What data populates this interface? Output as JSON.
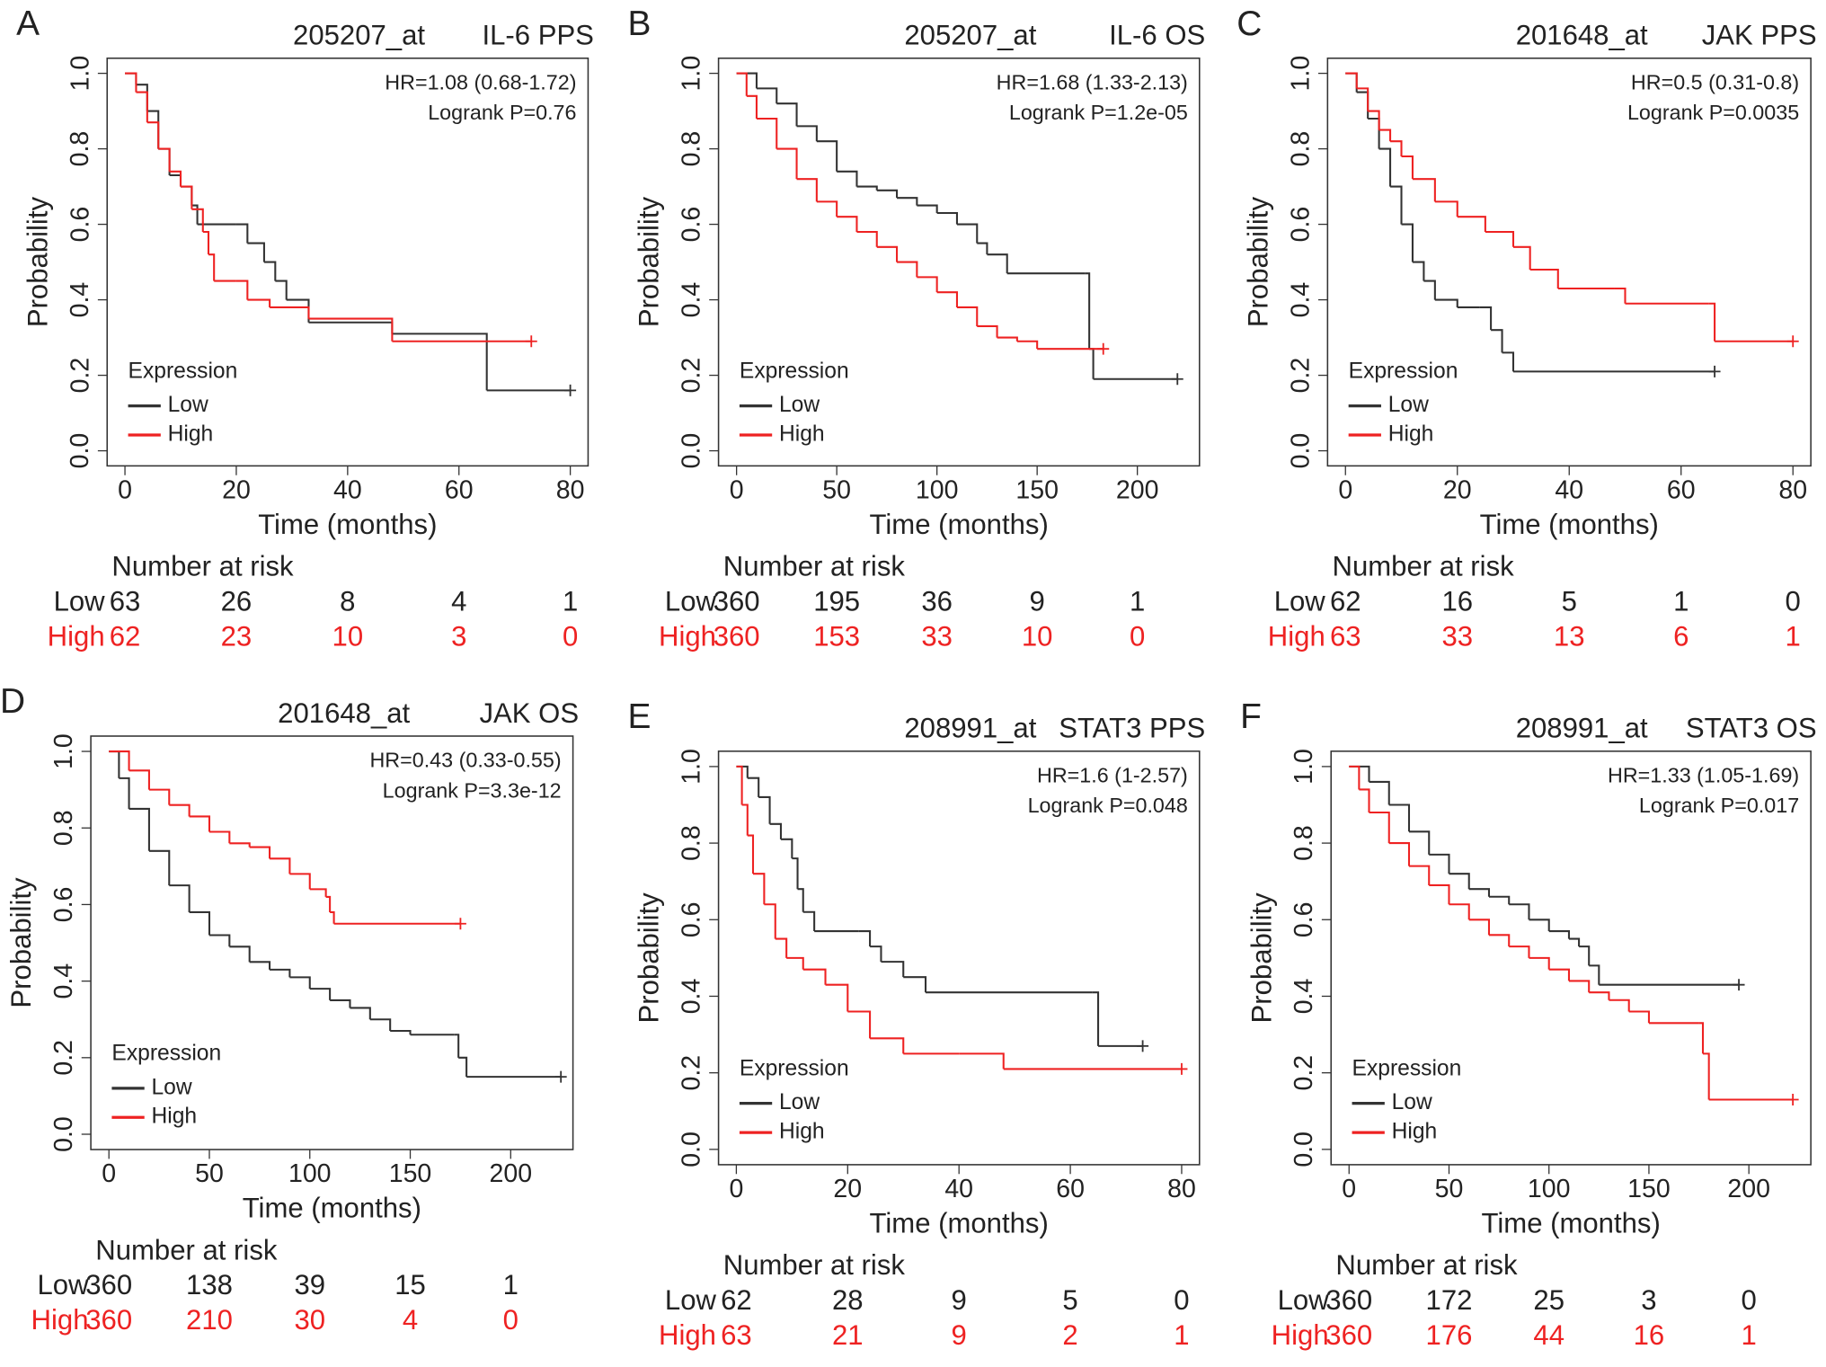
{
  "chart_data": [
    {
      "type": "step",
      "panel_label": "A",
      "title": "205207_at",
      "subtitle": "IL-6 PPS",
      "annotations": [
        "HR=1.08 (0.68-1.72)",
        "Logrank P=0.76"
      ],
      "x_label": "Time (months)",
      "y_label": "Probability",
      "legend_title": "Expression",
      "xlim": [
        -3.2,
        83.2
      ],
      "xticks": [
        0,
        20,
        40,
        60,
        80
      ],
      "ylim": [
        -0.04,
        1.04
      ],
      "yticks": [
        {
          "value": 0,
          "label": "0.0"
        },
        {
          "value": 0.2,
          "label": "0.2"
        },
        {
          "value": 0.4,
          "label": "0.4"
        },
        {
          "value": 0.6,
          "label": "0.6"
        },
        {
          "value": 0.8,
          "label": "0.8"
        },
        {
          "value": 1,
          "label": "1.0"
        }
      ],
      "series": [
        {
          "name": "Low",
          "color": "#333333",
          "x": [
            0,
            2,
            4,
            6,
            8,
            10,
            12,
            13,
            20,
            22,
            25,
            27,
            29,
            33,
            48,
            64,
            65,
            80
          ],
          "values": [
            1,
            0.97,
            0.9,
            0.8,
            0.73,
            0.7,
            0.65,
            0.6,
            0.6,
            0.55,
            0.5,
            0.45,
            0.4,
            0.34,
            0.31,
            0.31,
            0.16,
            0.16
          ]
        },
        {
          "name": "High",
          "color": "#ee2222",
          "x": [
            0,
            2,
            4,
            6,
            8,
            10,
            12,
            14,
            15,
            16,
            20,
            22,
            26,
            33,
            48,
            73
          ],
          "values": [
            1,
            0.95,
            0.87,
            0.8,
            0.74,
            0.7,
            0.64,
            0.58,
            0.52,
            0.45,
            0.45,
            0.4,
            0.38,
            0.35,
            0.29,
            0.29
          ]
        }
      ],
      "risk_table": {
        "title": "Number at risk",
        "rows": [
          {
            "name": "Low",
            "color": "#222222",
            "values": [
              63,
              26,
              8,
              4,
              1
            ]
          },
          {
            "name": "High",
            "color": "#ee2222",
            "values": [
              62,
              23,
              10,
              3,
              0
            ]
          }
        ]
      }
    },
    {
      "type": "step",
      "panel_label": "B",
      "title": "205207_at",
      "subtitle": "IL-6 OS",
      "annotations": [
        "HR=1.68 (1.33-2.13)",
        "Logrank P=1.2e-05"
      ],
      "x_label": "Time (months)",
      "y_label": "Probability",
      "legend_title": "Expression",
      "xlim": [
        -9,
        231
      ],
      "xticks": [
        0,
        50,
        100,
        150,
        200
      ],
      "ylim": [
        -0.04,
        1.04
      ],
      "yticks": [
        {
          "value": 0,
          "label": "0.0"
        },
        {
          "value": 0.2,
          "label": "0.2"
        },
        {
          "value": 0.4,
          "label": "0.4"
        },
        {
          "value": 0.6,
          "label": "0.6"
        },
        {
          "value": 0.8,
          "label": "0.8"
        },
        {
          "value": 1,
          "label": "1.0"
        }
      ],
      "series": [
        {
          "name": "Low",
          "color": "#333333",
          "x": [
            0,
            10,
            20,
            30,
            40,
            50,
            60,
            70,
            80,
            90,
            100,
            110,
            120,
            125,
            135,
            174,
            176,
            178,
            220
          ],
          "values": [
            1,
            0.96,
            0.92,
            0.86,
            0.82,
            0.74,
            0.7,
            0.69,
            0.67,
            0.65,
            0.63,
            0.6,
            0.55,
            0.52,
            0.47,
            0.47,
            0.27,
            0.19,
            0.19
          ]
        },
        {
          "name": "High",
          "color": "#ee2222",
          "x": [
            0,
            5,
            10,
            20,
            30,
            40,
            50,
            60,
            70,
            80,
            90,
            100,
            110,
            120,
            130,
            140,
            150,
            183
          ],
          "values": [
            1,
            0.94,
            0.88,
            0.8,
            0.72,
            0.66,
            0.62,
            0.58,
            0.54,
            0.5,
            0.46,
            0.42,
            0.38,
            0.33,
            0.3,
            0.29,
            0.27,
            0.27
          ]
        }
      ],
      "risk_table": {
        "title": "Number at risk",
        "rows": [
          {
            "name": "Low",
            "color": "#222222",
            "values": [
              360,
              195,
              36,
              9,
              1
            ]
          },
          {
            "name": "High",
            "color": "#ee2222",
            "values": [
              360,
              153,
              33,
              10,
              0
            ]
          }
        ]
      }
    },
    {
      "type": "step",
      "panel_label": "C",
      "title": "201648_at",
      "subtitle": "JAK PPS",
      "annotations": [
        "HR=0.5 (0.31-0.8)",
        "Logrank P=0.0035"
      ],
      "x_label": "Time (months)",
      "y_label": "Probability",
      "legend_title": "Expression",
      "xlim": [
        -3.2,
        83.2
      ],
      "xticks": [
        0,
        20,
        40,
        60,
        80
      ],
      "ylim": [
        -0.04,
        1.04
      ],
      "yticks": [
        {
          "value": 0,
          "label": "0.0"
        },
        {
          "value": 0.2,
          "label": "0.2"
        },
        {
          "value": 0.4,
          "label": "0.4"
        },
        {
          "value": 0.6,
          "label": "0.6"
        },
        {
          "value": 0.8,
          "label": "0.8"
        },
        {
          "value": 1,
          "label": "1.0"
        }
      ],
      "series": [
        {
          "name": "Low",
          "color": "#333333",
          "x": [
            0,
            2,
            4,
            6,
            8,
            10,
            12,
            14,
            16,
            20,
            24,
            26,
            28,
            30,
            66
          ],
          "values": [
            1,
            0.95,
            0.88,
            0.8,
            0.7,
            0.6,
            0.5,
            0.45,
            0.4,
            0.38,
            0.38,
            0.32,
            0.26,
            0.21,
            0.21
          ]
        },
        {
          "name": "High",
          "color": "#ee2222",
          "x": [
            0,
            2,
            4,
            6,
            8,
            10,
            12,
            16,
            20,
            25,
            30,
            33,
            38,
            48,
            50,
            65,
            66,
            80
          ],
          "values": [
            1,
            0.96,
            0.9,
            0.85,
            0.82,
            0.78,
            0.72,
            0.66,
            0.62,
            0.58,
            0.54,
            0.48,
            0.43,
            0.43,
            0.39,
            0.39,
            0.29,
            0.29
          ]
        }
      ],
      "risk_table": {
        "title": "Number at risk",
        "rows": [
          {
            "name": "Low",
            "color": "#222222",
            "values": [
              62,
              16,
              5,
              1,
              0
            ]
          },
          {
            "name": "High",
            "color": "#ee2222",
            "values": [
              63,
              33,
              13,
              6,
              1
            ]
          }
        ]
      }
    },
    {
      "type": "step",
      "panel_label": "D",
      "title": "201648_at",
      "subtitle": "JAK OS",
      "annotations": [
        "HR=0.43 (0.33-0.55)",
        "Logrank P=3.3e-12"
      ],
      "x_label": "Time (months)",
      "y_label": "Probability",
      "legend_title": "Expression",
      "xlim": [
        -9,
        231
      ],
      "xticks": [
        0,
        50,
        100,
        150,
        200
      ],
      "ylim": [
        -0.04,
        1.04
      ],
      "yticks": [
        {
          "value": 0,
          "label": "0.0"
        },
        {
          "value": 0.2,
          "label": "0.2"
        },
        {
          "value": 0.4,
          "label": "0.4"
        },
        {
          "value": 0.6,
          "label": "0.6"
        },
        {
          "value": 0.8,
          "label": "0.8"
        },
        {
          "value": 1,
          "label": "1.0"
        }
      ],
      "series": [
        {
          "name": "Low",
          "color": "#333333",
          "x": [
            0,
            5,
            10,
            20,
            30,
            40,
            50,
            60,
            70,
            80,
            90,
            100,
            110,
            120,
            130,
            140,
            150,
            172,
            174,
            178,
            225
          ],
          "values": [
            1,
            0.93,
            0.85,
            0.74,
            0.65,
            0.58,
            0.52,
            0.49,
            0.45,
            0.43,
            0.41,
            0.38,
            0.35,
            0.33,
            0.3,
            0.27,
            0.26,
            0.26,
            0.2,
            0.15,
            0.15
          ]
        },
        {
          "name": "High",
          "color": "#ee2222",
          "x": [
            0,
            10,
            20,
            30,
            40,
            50,
            60,
            70,
            80,
            90,
            100,
            108,
            110,
            112,
            175
          ],
          "values": [
            1,
            0.95,
            0.9,
            0.86,
            0.83,
            0.79,
            0.76,
            0.75,
            0.72,
            0.68,
            0.64,
            0.62,
            0.58,
            0.55,
            0.55
          ]
        }
      ],
      "risk_table": {
        "title": "Number at risk",
        "rows": [
          {
            "name": "Low",
            "color": "#222222",
            "values": [
              360,
              138,
              39,
              15,
              1
            ]
          },
          {
            "name": "High",
            "color": "#ee2222",
            "values": [
              360,
              210,
              30,
              4,
              0
            ]
          }
        ]
      }
    },
    {
      "type": "step",
      "panel_label": "E",
      "title": "208991_at",
      "subtitle": "STAT3 PPS",
      "annotations": [
        "HR=1.6 (1-2.57)",
        "Logrank P=0.048"
      ],
      "x_label": "Time (months)",
      "y_label": "Probability",
      "legend_title": "Expression",
      "xlim": [
        -3.2,
        83.2
      ],
      "xticks": [
        0,
        20,
        40,
        60,
        80
      ],
      "ylim": [
        -0.04,
        1.04
      ],
      "yticks": [
        {
          "value": 0,
          "label": "0.0"
        },
        {
          "value": 0.2,
          "label": "0.2"
        },
        {
          "value": 0.4,
          "label": "0.4"
        },
        {
          "value": 0.6,
          "label": "0.6"
        },
        {
          "value": 0.8,
          "label": "0.8"
        },
        {
          "value": 1,
          "label": "1.0"
        }
      ],
      "series": [
        {
          "name": "Low",
          "color": "#333333",
          "x": [
            0,
            2,
            4,
            6,
            8,
            10,
            11,
            12,
            14,
            22,
            24,
            26,
            30,
            34,
            64,
            65,
            73
          ],
          "values": [
            1,
            0.97,
            0.92,
            0.85,
            0.81,
            0.76,
            0.68,
            0.62,
            0.57,
            0.57,
            0.53,
            0.49,
            0.45,
            0.41,
            0.41,
            0.27,
            0.27
          ]
        },
        {
          "name": "High",
          "color": "#ee2222",
          "x": [
            0,
            1,
            2,
            3,
            5,
            7,
            9,
            12,
            16,
            20,
            24,
            30,
            40,
            48,
            80
          ],
          "values": [
            1,
            0.9,
            0.82,
            0.72,
            0.64,
            0.55,
            0.5,
            0.47,
            0.43,
            0.36,
            0.29,
            0.25,
            0.25,
            0.21,
            0.21
          ]
        }
      ],
      "risk_table": {
        "title": "Number at risk",
        "rows": [
          {
            "name": "Low",
            "color": "#222222",
            "values": [
              62,
              28,
              9,
              5,
              0
            ]
          },
          {
            "name": "High",
            "color": "#ee2222",
            "values": [
              63,
              21,
              9,
              2,
              1
            ]
          }
        ]
      }
    },
    {
      "type": "step",
      "panel_label": "F",
      "title": "208991_at",
      "subtitle": "STAT3 OS",
      "annotations": [
        "HR=1.33 (1.05-1.69)",
        "Logrank P=0.017"
      ],
      "x_label": "Time (months)",
      "y_label": "Probability",
      "legend_title": "Expression",
      "xlim": [
        -9,
        231
      ],
      "xticks": [
        0,
        50,
        100,
        150,
        200
      ],
      "ylim": [
        -0.04,
        1.04
      ],
      "yticks": [
        {
          "value": 0,
          "label": "0.0"
        },
        {
          "value": 0.2,
          "label": "0.2"
        },
        {
          "value": 0.4,
          "label": "0.4"
        },
        {
          "value": 0.6,
          "label": "0.6"
        },
        {
          "value": 0.8,
          "label": "0.8"
        },
        {
          "value": 1,
          "label": "1.0"
        }
      ],
      "series": [
        {
          "name": "Low",
          "color": "#333333",
          "x": [
            0,
            10,
            20,
            30,
            40,
            50,
            60,
            70,
            80,
            90,
            100,
            110,
            115,
            120,
            125,
            195
          ],
          "values": [
            1,
            0.96,
            0.9,
            0.83,
            0.77,
            0.72,
            0.68,
            0.66,
            0.64,
            0.6,
            0.57,
            0.55,
            0.53,
            0.48,
            0.43,
            0.43
          ]
        },
        {
          "name": "High",
          "color": "#ee2222",
          "x": [
            0,
            5,
            10,
            20,
            30,
            40,
            50,
            60,
            70,
            80,
            90,
            100,
            110,
            120,
            130,
            140,
            150,
            175,
            177,
            180,
            222
          ],
          "values": [
            1,
            0.94,
            0.88,
            0.8,
            0.74,
            0.69,
            0.64,
            0.6,
            0.56,
            0.53,
            0.5,
            0.47,
            0.44,
            0.41,
            0.39,
            0.36,
            0.33,
            0.33,
            0.25,
            0.13,
            0.13
          ]
        }
      ],
      "risk_table": {
        "title": "Number at risk",
        "rows": [
          {
            "name": "Low",
            "color": "#222222",
            "values": [
              360,
              172,
              25,
              3,
              0
            ]
          },
          {
            "name": "High",
            "color": "#ee2222",
            "values": [
              360,
              176,
              44,
              16,
              1
            ]
          }
        ]
      }
    }
  ]
}
